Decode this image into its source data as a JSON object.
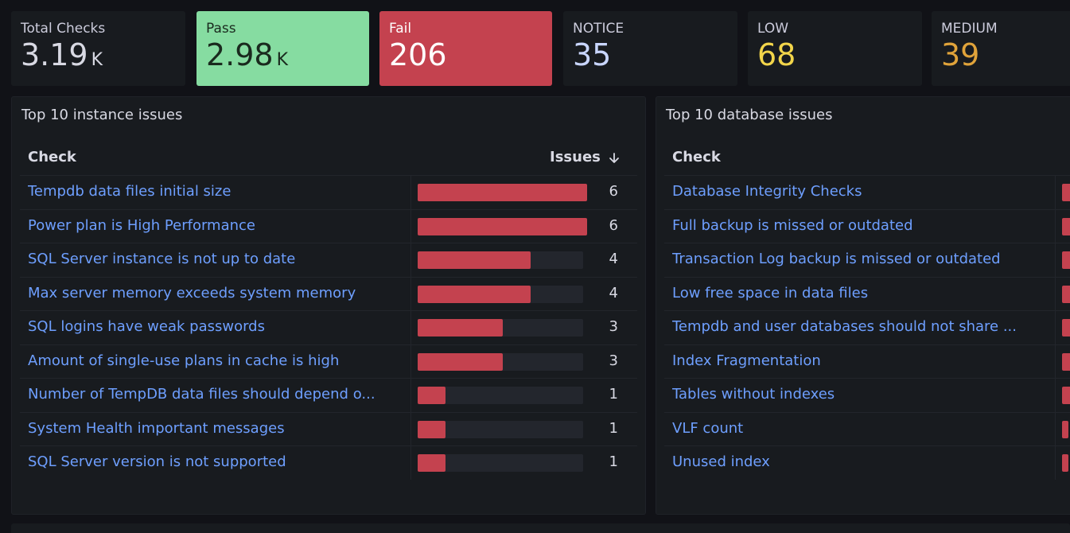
{
  "stats": [
    {
      "label": "Total Checks",
      "value": "3.19",
      "unit": "K",
      "color": "#d8d9e3",
      "kind": "default"
    },
    {
      "label": "Pass",
      "value": "2.98",
      "unit": "K",
      "color": "#1a2a1e",
      "kind": "pass"
    },
    {
      "label": "Fail",
      "value": "206",
      "unit": "",
      "color": "#ffffff",
      "kind": "fail"
    },
    {
      "label": "NOTICE",
      "value": "35",
      "unit": "",
      "color": "#c9d6ff",
      "kind": "default"
    },
    {
      "label": "LOW",
      "value": "68",
      "unit": "",
      "color": "#f2d54a",
      "kind": "default"
    },
    {
      "label": "MEDIUM",
      "value": "39",
      "unit": "",
      "color": "#e0a33a",
      "kind": "default"
    }
  ],
  "instance_panel": {
    "title": "Top 10 instance issues",
    "col_check": "Check",
    "col_issues": "Issues",
    "sort_icon": "arrow-down-icon",
    "max": 6,
    "rows": [
      {
        "check": "Tempdb data files initial size",
        "issues": 6
      },
      {
        "check": "Power plan is High Performance",
        "issues": 6
      },
      {
        "check": "SQL Server instance is not up to date",
        "issues": 4
      },
      {
        "check": "Max server memory exceeds system memory",
        "issues": 4
      },
      {
        "check": "SQL logins have weak passwords",
        "issues": 3
      },
      {
        "check": "Amount of single-use plans in cache is high",
        "issues": 3
      },
      {
        "check": "Number of TempDB data files should depend o...",
        "issues": 1
      },
      {
        "check": "System Health important messages",
        "issues": 1
      },
      {
        "check": "SQL Server version is not supported",
        "issues": 1
      }
    ]
  },
  "database_panel": {
    "title": "Top 10 database issues",
    "col_check": "Check",
    "rows": [
      {
        "check": "Database Integrity Checks"
      },
      {
        "check": "Full backup is missed or outdated"
      },
      {
        "check": "Transaction Log backup is missed or outdated"
      },
      {
        "check": "Low free space in data files"
      },
      {
        "check": "Tempdb and user databases should not share ..."
      },
      {
        "check": "Index Fragmentation"
      },
      {
        "check": "Tables without indexes"
      },
      {
        "check": "VLF count"
      },
      {
        "check": "Unused index"
      }
    ]
  },
  "colors": {
    "bar": "#c4424f",
    "link": "#6e9fff",
    "pass_bg": "#86dca1",
    "fail_bg": "#c4424f"
  }
}
